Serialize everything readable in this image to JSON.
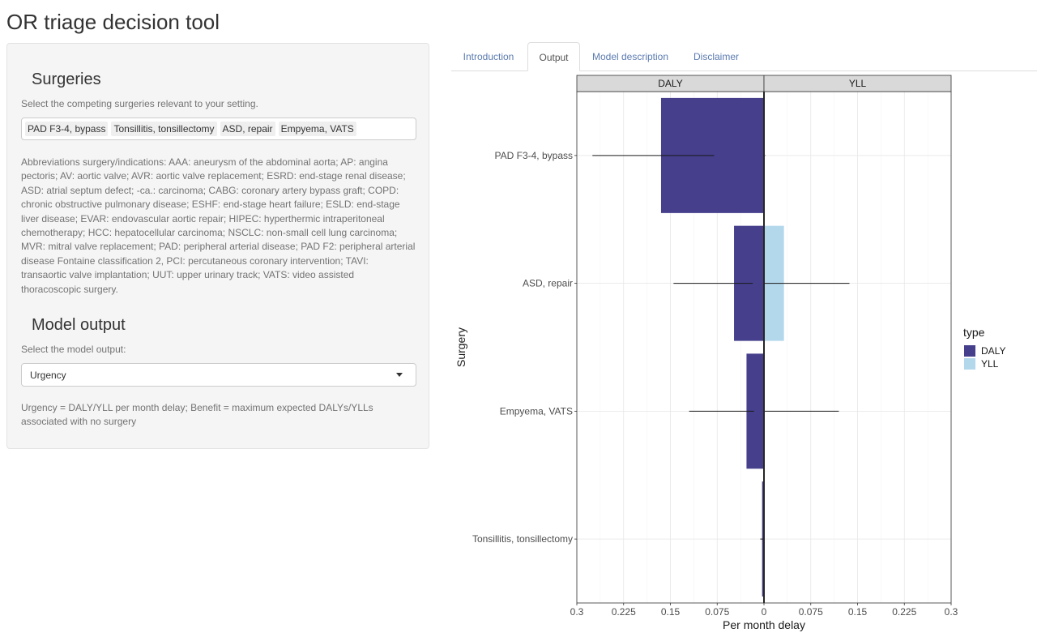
{
  "app": {
    "title": "OR triage decision tool"
  },
  "sidebar": {
    "surgeries": {
      "title": "Surgeries",
      "help": "Select the competing surgeries relevant to your setting.",
      "selected": [
        "PAD F3-4, bypass",
        "Tonsillitis, tonsillectomy",
        "ASD, repair",
        "Empyema, VATS"
      ]
    },
    "abbreviations": "Abbreviations surgery/indications: AAA: aneurysm of the abdominal aorta; AP: angina pectoris; AV: aortic valve; AVR: aortic valve replacement; ESRD: end-stage renal disease; ASD: atrial septum defect; -ca.: carcinoma; CABG: coronary artery bypass graft; COPD: chronic obstructive pulmonary disease; ESHF: end-stage heart failure; ESLD: end-stage liver disease; EVAR: endovascular aortic repair; HIPEC: hyperthermic intraperitoneal chemotherapy; HCC: hepatocellular carcinoma; NSCLC: non-small cell lung carcinoma; MVR: mitral valve replacement; PAD: peripheral arterial disease; PAD F2: peripheral arterial disease Fontaine classification 2, PCI: percutaneous coronary intervention; TAVI: transaortic valve implantation; UUT: upper urinary track; VATS: video assisted thoracoscopic surgery.",
    "model_output": {
      "title": "Model output",
      "help": "Select the model output:",
      "selected": "Urgency",
      "note": "Urgency = DALY/YLL per month delay; Benefit = maximum expected DALYs/YLLs associated with no surgery"
    }
  },
  "tabs": [
    {
      "label": "Introduction",
      "active": false
    },
    {
      "label": "Output",
      "active": true
    },
    {
      "label": "Model description",
      "active": false
    },
    {
      "label": "Disclaimer",
      "active": false
    }
  ],
  "chart_data": {
    "type": "bar",
    "orientation": "horizontal",
    "facets": [
      "DALY",
      "YLL"
    ],
    "categories": [
      "PAD F3-4, bypass",
      "ASD, repair",
      "Empyema, VATS",
      "Tonsillitis, tonsillectomy"
    ],
    "series": [
      {
        "name": "DALY",
        "facet": "DALY",
        "color": "#453f8c",
        "values": [
          0.165,
          0.048,
          0.028,
          0.003
        ],
        "error_low": [
          0.08,
          0.018,
          0.016,
          0.0
        ],
        "error_high": [
          0.275,
          0.145,
          0.12,
          0.006
        ]
      },
      {
        "name": "YLL",
        "facet": "YLL",
        "color": "#b3d8ec",
        "values": [
          0.0,
          0.032,
          0.0,
          0.0
        ],
        "error_low": [
          0.0,
          0.0,
          0.0,
          0.0
        ],
        "error_high": [
          0.002,
          0.137,
          0.12,
          0.0
        ]
      }
    ],
    "xlabel": "Per month delay",
    "ylabel": "Surgery",
    "xlim": [
      0,
      0.3
    ],
    "ticks": [
      "0.3",
      "0.225",
      "0.15",
      "0.075",
      "0",
      "0.075",
      "0.15",
      "0.225",
      "0.3"
    ],
    "legend": {
      "title": "type",
      "position": "right",
      "items": [
        "DALY",
        "YLL"
      ]
    },
    "grid": true
  }
}
